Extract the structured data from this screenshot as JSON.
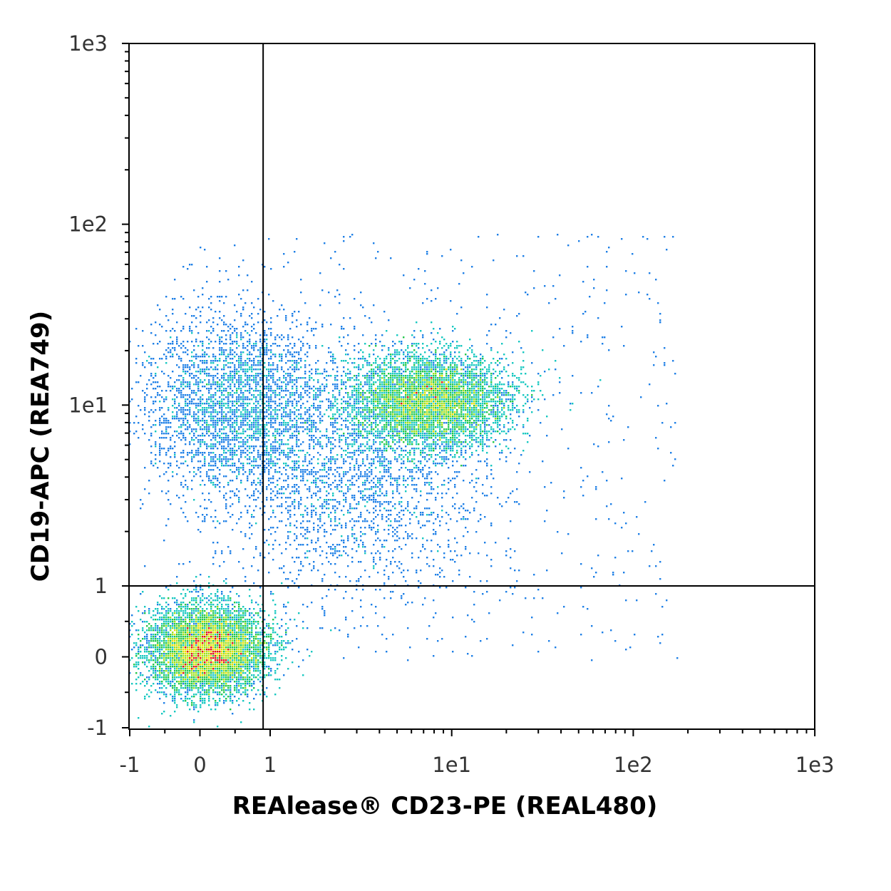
{
  "chart_data": {
    "type": "scatter",
    "subtype": "flow-cytometry-density-dot-plot",
    "title": "",
    "xlabel": "REAlease® CD23-PE (REAL480)",
    "ylabel": "CD19-APC (REA749)",
    "x_scale": "hlog",
    "y_scale": "hlog",
    "xlim": [
      -1,
      1000
    ],
    "ylim": [
      -1,
      1000
    ],
    "x_ticks": [
      {
        "value": -1,
        "label": "-1"
      },
      {
        "value": 0,
        "label": "0"
      },
      {
        "value": 1,
        "label": "1"
      },
      {
        "value": 10,
        "label": "1e1"
      },
      {
        "value": 100,
        "label": "1e2"
      },
      {
        "value": 1000,
        "label": "1e3"
      }
    ],
    "y_ticks": [
      {
        "value": -1,
        "label": "-1"
      },
      {
        "value": 0,
        "label": "0"
      },
      {
        "value": 1,
        "label": "1"
      },
      {
        "value": 10,
        "label": "1e1"
      },
      {
        "value": 100,
        "label": "1e2"
      },
      {
        "value": 1000,
        "label": "1e3"
      }
    ],
    "grid": false,
    "legend": "none",
    "quadrant_gate": {
      "x": 0.9,
      "y": 1
    },
    "density_colors": [
      "#1f1fd6",
      "#1e7fe6",
      "#16c8c0",
      "#22c84a",
      "#9be01a",
      "#e8e000",
      "#e01010"
    ],
    "populations": [
      {
        "center_x": 0.1,
        "center_y": 0.1,
        "spread_x_decades": 0.16,
        "spread_y_decades": 0.12,
        "weight": 0.45
      },
      {
        "center_x": 7.5,
        "center_y": 10.5,
        "spread_x_decades": 0.22,
        "spread_y_decades": 0.13,
        "weight": 0.35
      },
      {
        "center_x": 0.5,
        "center_y": 10,
        "spread_x_decades": 0.25,
        "spread_y_decades": 0.25,
        "weight": 0.12
      },
      {
        "center_x": 3.0,
        "center_y": 4.0,
        "spread_x_decades": 0.35,
        "spread_y_decades": 0.3,
        "weight": 0.08
      }
    ]
  }
}
